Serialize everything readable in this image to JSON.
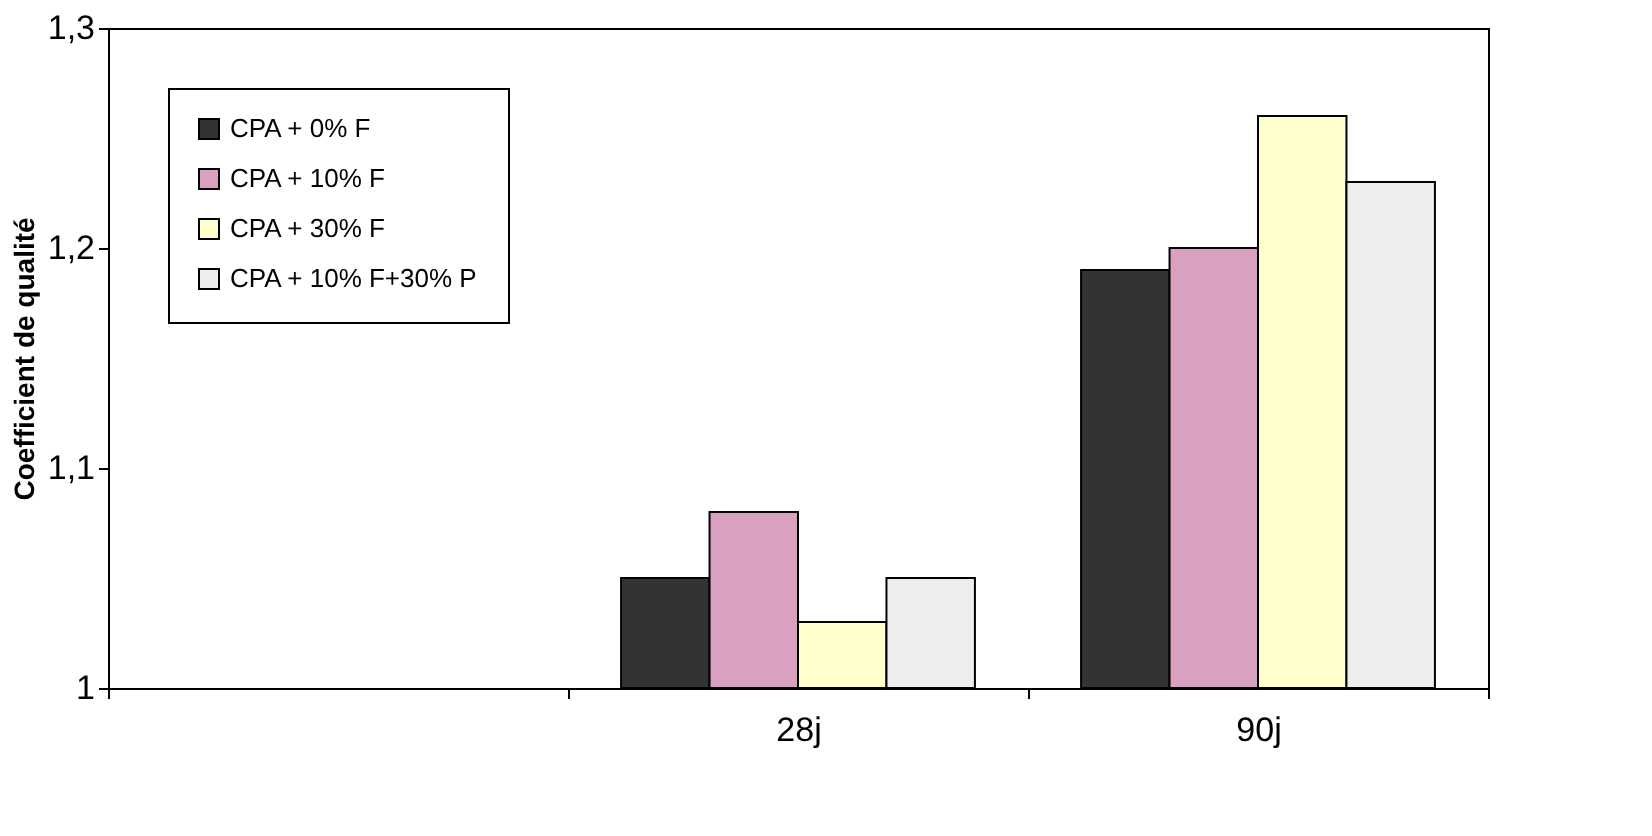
{
  "chart_data": {
    "type": "bar",
    "ylabel": "Coefficient  de qualité",
    "categories": [
      null,
      "28j",
      "90j"
    ],
    "series": [
      {
        "name": "CPA + 0% F",
        "color": "#333333",
        "values": [
          null,
          1.05,
          1.19
        ]
      },
      {
        "name": "CPA + 10% F",
        "color": "#d9a0c0",
        "values": [
          null,
          1.08,
          1.2
        ]
      },
      {
        "name": "CPA + 30% F",
        "color": "#ffffcc",
        "values": [
          null,
          1.03,
          1.26
        ]
      },
      {
        "name": "CPA + 10% F+30% P",
        "color": "#eeeeee",
        "values": [
          null,
          1.05,
          1.23
        ]
      }
    ],
    "ylim": [
      1,
      1.3
    ],
    "yticks": [
      1,
      {
        "value": 1.1,
        "label": "1,1"
      },
      {
        "value": 1.2,
        "label": "1,2"
      },
      {
        "value": 1.3,
        "label": "1,3"
      }
    ],
    "grid": false,
    "legend": "top left"
  }
}
